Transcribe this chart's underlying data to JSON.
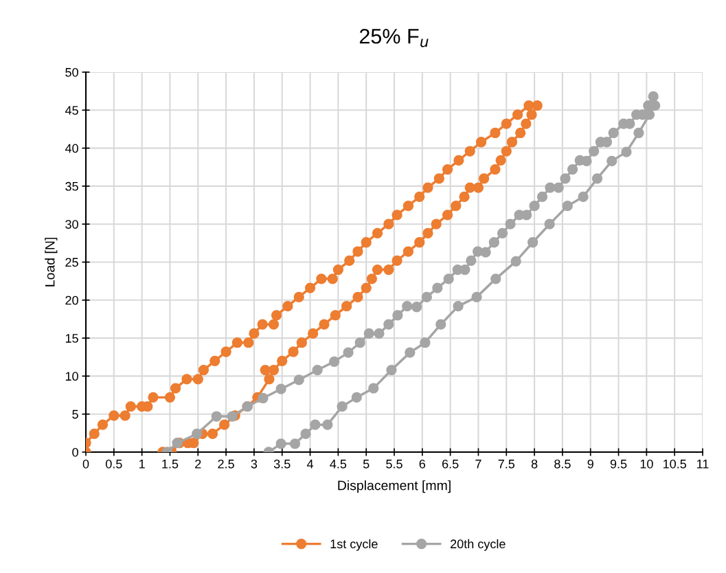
{
  "chart_data": {
    "type": "line",
    "title": "25% F$_{u}$",
    "xlabel": "Displacement [mm]",
    "ylabel": "Load [N]",
    "xlim": [
      0,
      11
    ],
    "xticks": [
      0,
      0.5,
      1,
      1.5,
      2,
      2.5,
      3,
      3.5,
      4,
      4.5,
      5,
      5.5,
      6,
      6.5,
      7,
      7.5,
      8,
      8.5,
      9,
      9.5,
      10,
      10.5,
      11
    ],
    "ylim": [
      0,
      50
    ],
    "yticks": [
      0,
      5,
      10,
      15,
      20,
      25,
      30,
      35,
      40,
      45,
      50
    ],
    "grid": true,
    "legend": "bottom",
    "marker": "circle",
    "line_style": "solid",
    "series": [
      {
        "name": "1st cycle",
        "color": "#ed7d31",
        "x": [
          0,
          0,
          0.15,
          0.3,
          0.5,
          0.7,
          0.8,
          1.0,
          1.1,
          1.2,
          1.5,
          1.6,
          1.8,
          2.0,
          2.1,
          2.3,
          2.5,
          2.7,
          2.9,
          3.0,
          3.15,
          3.35,
          3.4,
          3.6,
          3.8,
          4.0,
          4.2,
          4.4,
          4.5,
          4.7,
          4.85,
          5.0,
          5.2,
          5.4,
          5.55,
          5.75,
          5.95,
          6.1,
          6.3,
          6.45,
          6.65,
          6.85,
          7.05,
          7.3,
          7.5,
          7.7,
          7.9,
          8.05,
          7.95,
          7.85,
          7.75,
          7.6,
          7.5,
          7.4,
          7.3,
          7.1,
          7.0,
          6.85,
          6.75,
          6.6,
          6.45,
          6.25,
          6.1,
          5.95,
          5.75,
          5.55,
          5.4,
          5.2,
          5.1,
          5.0,
          4.85,
          4.65,
          4.45,
          4.25,
          4.05,
          3.85,
          3.7,
          3.5,
          3.35,
          3.2,
          3.27,
          3.06,
          2.88,
          2.66,
          2.47,
          2.26,
          2.08,
          1.92,
          1.82,
          1.67,
          1.53,
          1.37
        ],
        "values": [
          0,
          1.2,
          2.4,
          3.6,
          4.8,
          4.8,
          6.0,
          6.0,
          6.0,
          7.2,
          7.2,
          8.4,
          9.6,
          9.6,
          10.8,
          12.0,
          13.2,
          14.4,
          14.4,
          15.6,
          16.8,
          16.8,
          18.0,
          19.2,
          20.4,
          21.6,
          22.8,
          22.8,
          24.0,
          25.2,
          26.4,
          27.6,
          28.8,
          30.0,
          31.2,
          32.4,
          33.6,
          34.8,
          36.0,
          37.2,
          38.4,
          39.6,
          40.8,
          42.0,
          43.2,
          44.4,
          45.6,
          45.6,
          44.4,
          43.2,
          42.0,
          40.8,
          39.6,
          38.4,
          37.2,
          36.0,
          34.8,
          34.8,
          33.6,
          32.4,
          31.2,
          30.0,
          28.8,
          27.6,
          26.4,
          25.2,
          24.0,
          24.0,
          22.8,
          21.6,
          20.4,
          19.2,
          18.0,
          16.8,
          15.6,
          14.4,
          13.2,
          12.0,
          10.8,
          10.8,
          9.6,
          7.2,
          6.0,
          4.8,
          3.6,
          2.4,
          2.4,
          1.2,
          1.2,
          1.2,
          0,
          0
        ]
      },
      {
        "name": "20th cycle",
        "color": "#a5a5a5",
        "x": [
          1.45,
          1.63,
          1.98,
          2.33,
          2.61,
          2.88,
          3.16,
          3.48,
          3.8,
          4.13,
          4.43,
          4.68,
          4.89,
          5.05,
          5.23,
          5.4,
          5.56,
          5.73,
          5.9,
          6.08,
          6.27,
          6.47,
          6.63,
          6.76,
          6.87,
          6.99,
          7.13,
          7.28,
          7.43,
          7.57,
          7.73,
          7.86,
          8.0,
          8.14,
          8.28,
          8.43,
          8.55,
          8.68,
          8.81,
          8.93,
          9.06,
          9.18,
          9.29,
          9.41,
          9.59,
          9.7,
          9.82,
          9.93,
          10.03,
          10.12,
          10.15,
          10.05,
          9.86,
          9.64,
          9.38,
          9.12,
          8.87,
          8.59,
          8.27,
          7.97,
          7.67,
          7.31,
          6.97,
          6.64,
          6.33,
          6.05,
          5.78,
          5.45,
          5.13,
          4.83,
          4.57,
          4.31,
          4.09,
          3.92,
          3.73,
          3.48,
          3.26
        ],
        "values": [
          0,
          1.2,
          2.4,
          4.7,
          4.7,
          6.0,
          7.1,
          8.3,
          9.5,
          10.8,
          11.9,
          13.1,
          14.4,
          15.6,
          15.6,
          16.8,
          18.0,
          19.2,
          19.1,
          20.4,
          21.6,
          22.8,
          24.0,
          24.0,
          25.2,
          26.4,
          26.3,
          27.6,
          28.8,
          30.0,
          31.2,
          31.2,
          32.4,
          33.6,
          34.8,
          34.8,
          36.0,
          37.2,
          38.4,
          38.3,
          39.6,
          40.8,
          40.8,
          42.0,
          43.2,
          43.2,
          44.4,
          44.4,
          45.6,
          46.8,
          45.6,
          44.4,
          42.0,
          39.5,
          38.3,
          36.0,
          33.6,
          32.4,
          30.0,
          27.6,
          25.1,
          22.8,
          20.4,
          19.2,
          16.8,
          14.4,
          13.1,
          10.8,
          8.4,
          7.2,
          6.0,
          3.6,
          3.6,
          2.4,
          1.1,
          1.1,
          0
        ]
      }
    ]
  }
}
